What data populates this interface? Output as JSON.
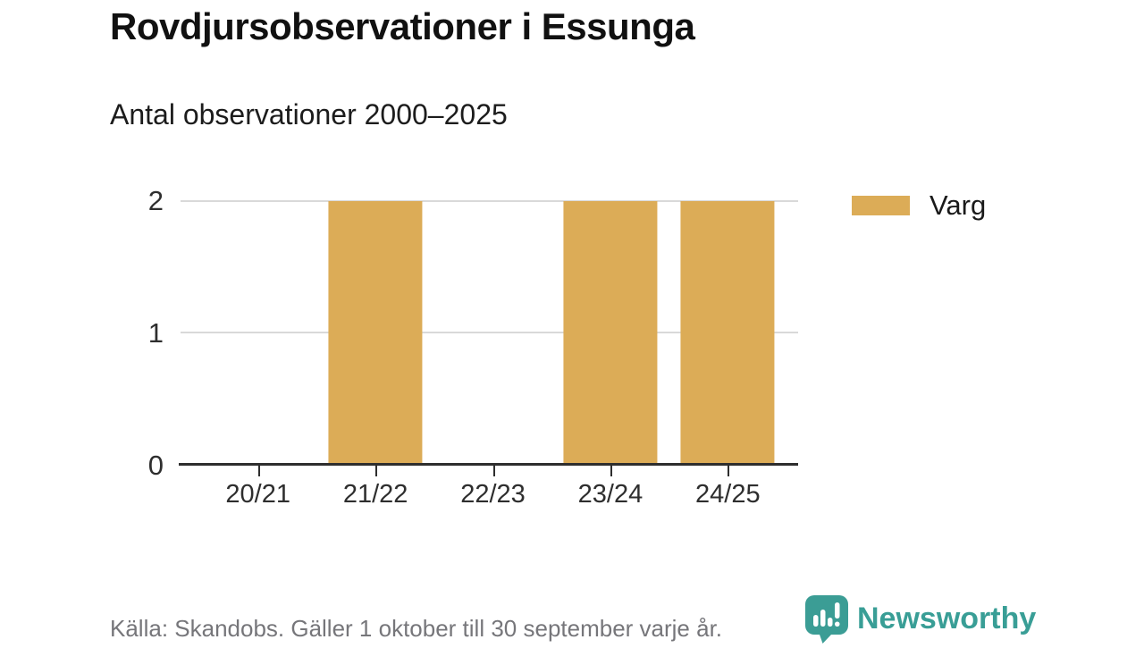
{
  "title": "Rovdjursobservationer i Essunga",
  "subtitle": "Antal observationer 2000–2025",
  "source": "Källa: Skandobs. Gäller 1 oktober till 30 september varje år.",
  "brand": {
    "name": "Newsworthy",
    "color": "#399e96",
    "icon": "bar-chart-speech-bubble-icon"
  },
  "legend": [
    {
      "label": "Varg",
      "color": "#dcac57"
    }
  ],
  "chart_data": {
    "type": "bar",
    "categories": [
      "20/21",
      "21/22",
      "22/23",
      "23/24",
      "24/25"
    ],
    "series": [
      {
        "name": "Varg",
        "values": [
          0,
          2,
          0,
          2,
          2
        ]
      }
    ],
    "title": "Rovdjursobservationer i Essunga",
    "subtitle": "Antal observationer 2000–2025",
    "xlabel": "",
    "ylabel": "",
    "yticks": [
      0,
      1,
      2
    ],
    "ylim": [
      0,
      2
    ],
    "grid": true,
    "legend_position": "right",
    "bar_color": "#dcac57",
    "axis_color": "#2e2e2e",
    "gridline_color": "#d9d9d9"
  }
}
